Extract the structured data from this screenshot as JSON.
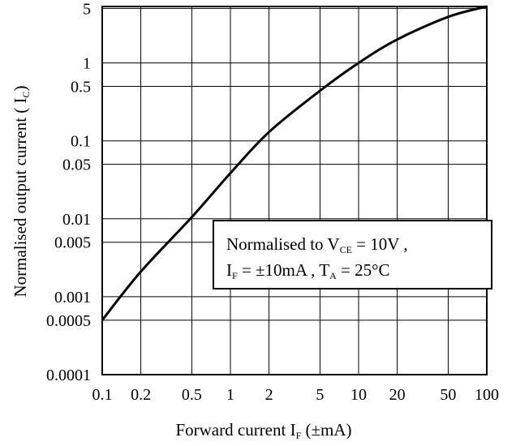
{
  "chart_data": {
    "type": "line",
    "xscale": "log",
    "yscale": "log",
    "xlim": [
      0.1,
      100
    ],
    "ylim": [
      0.0001,
      5.3
    ],
    "grid": true,
    "legend_position": "none",
    "xlabel": {
      "main": "Forward current I",
      "sub": "F",
      "tail": " (±mA)"
    },
    "ylabel": {
      "main": "Normalised output current ( I",
      "sub": "C",
      "tail": ")"
    },
    "x_ticks": [
      {
        "value": 0.1,
        "label": "0.1"
      },
      {
        "value": 0.2,
        "label": "0.2"
      },
      {
        "value": 0.5,
        "label": "0.5"
      },
      {
        "value": 1,
        "label": "1"
      },
      {
        "value": 2,
        "label": "2"
      },
      {
        "value": 5,
        "label": "5"
      },
      {
        "value": 10,
        "label": "10"
      },
      {
        "value": 20,
        "label": "20"
      },
      {
        "value": 50,
        "label": "50"
      },
      {
        "value": 100,
        "label": "100"
      }
    ],
    "y_ticks": [
      {
        "value": 0.0001,
        "label": "0.0001"
      },
      {
        "value": 0.0005,
        "label": "0.0005"
      },
      {
        "value": 0.001,
        "label": "0.001"
      },
      {
        "value": 0.005,
        "label": "0.005"
      },
      {
        "value": 0.01,
        "label": "0.01"
      },
      {
        "value": 0.05,
        "label": "0.05"
      },
      {
        "value": 0.1,
        "label": "0.1"
      },
      {
        "value": 0.5,
        "label": "0.5"
      },
      {
        "value": 1,
        "label": "1"
      },
      {
        "value": 5,
        "label": "5"
      }
    ],
    "series": [
      {
        "color": "#000000",
        "x": [
          0.1,
          0.2,
          0.5,
          1,
          2,
          5,
          10,
          20,
          50,
          100
        ],
        "y": [
          0.0005,
          0.0021,
          0.0105,
          0.0385,
          0.13,
          0.44,
          1.0,
          2.0,
          3.9,
          5.3
        ]
      }
    ],
    "annotation": {
      "lines": [
        [
          {
            "text": "Normalised to V",
            "sub": false
          },
          {
            "text": "CE",
            "sub": true
          },
          {
            "text": " = 10V ,",
            "sub": false
          }
        ],
        [
          {
            "text": "I",
            "sub": false
          },
          {
            "text": "F",
            "sub": true
          },
          {
            "text": " = ±10mA , T",
            "sub": false
          },
          {
            "text": "A",
            "sub": true
          },
          {
            "text": " = 25°C",
            "sub": false
          }
        ]
      ]
    }
  }
}
